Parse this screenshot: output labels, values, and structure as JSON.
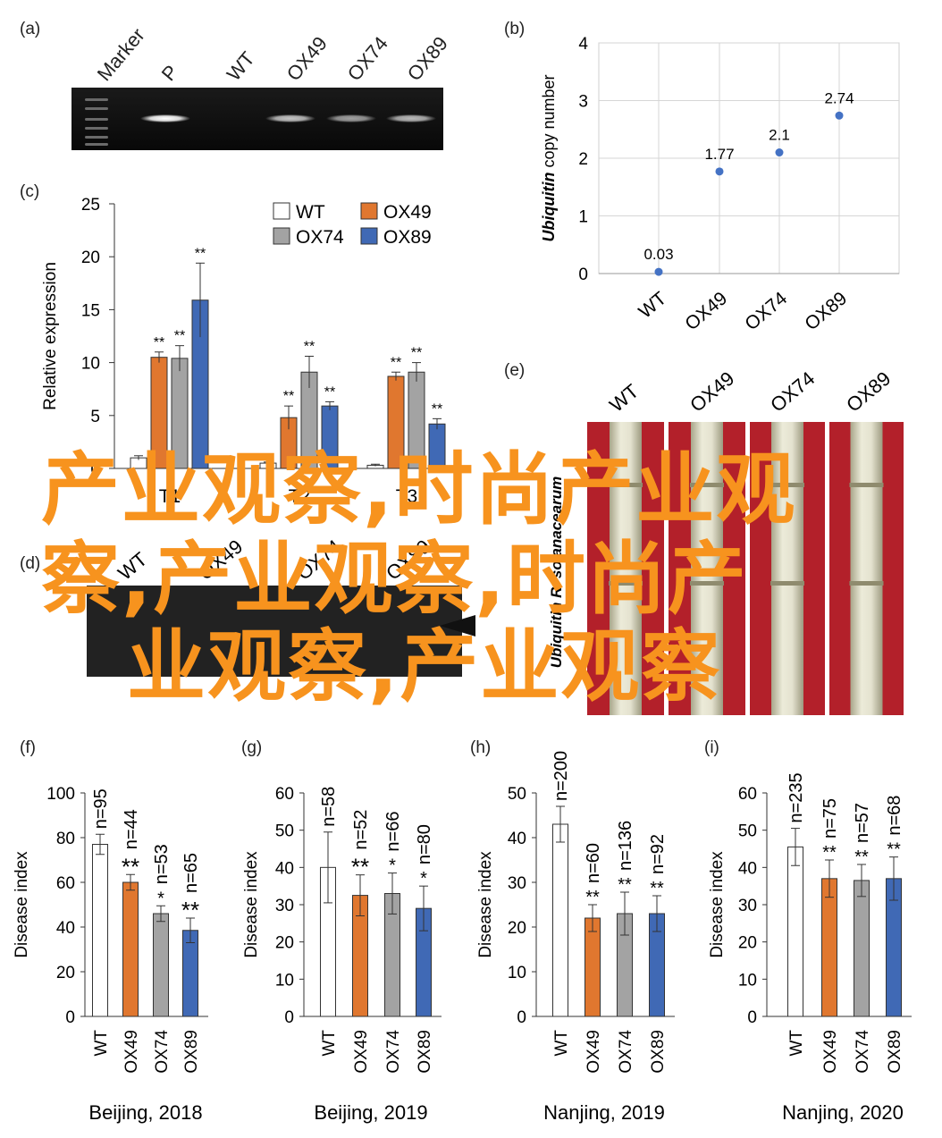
{
  "panel_labels": {
    "a": "(a)",
    "b": "(b)",
    "c": "(c)",
    "d": "(d)",
    "e": "(e)",
    "f": "(f)",
    "g": "(g)",
    "h": "(h)",
    "i": "(i)"
  },
  "colors": {
    "WT": "#ffffff",
    "OX49": "#e0772f",
    "OX74": "#a3a3a3",
    "OX89": "#4069b5",
    "watermark": "#f7931e",
    "dot": "#4472c4"
  },
  "gel_a": {
    "lanes": [
      "Marker",
      "P",
      "WT",
      "OX49",
      "OX74",
      "OX89"
    ]
  },
  "gel_d": {
    "lanes": [
      "WT",
      "OX49",
      "OX74",
      "OX89"
    ]
  },
  "photo_e": {
    "lanes": [
      "WT",
      "OX49",
      "OX74",
      "OX89"
    ],
    "side_label": "Ubiquitin R. solanacearum"
  },
  "watermark": {
    "lines": [
      "产业观察,时尚产业观",
      "察,产业观察,时尚产",
      "业观察,产业观察"
    ]
  },
  "chart_data": [
    {
      "id": "b",
      "type": "scatter",
      "categories": [
        "WT",
        "OX49",
        "OX74",
        "OX89"
      ],
      "values": [
        0.03,
        1.77,
        2.1,
        2.74
      ],
      "data_labels": [
        "0.03",
        "1.77",
        "2.1",
        "2.74"
      ],
      "ylabel_italic": "Ubiquitin",
      "ylabel_rest": " copy number",
      "ylim": [
        0,
        4
      ],
      "yticks": [
        "0",
        "1",
        "2",
        "3",
        "4"
      ],
      "grid": true
    },
    {
      "id": "c",
      "type": "bar",
      "categories": [
        "T1",
        "T2",
        "T3"
      ],
      "series": [
        {
          "name": "WT",
          "values": [
            1.0,
            0.5,
            0.3
          ],
          "errors": [
            0.2,
            0.1,
            0.1
          ],
          "sig": [
            "",
            "",
            ""
          ]
        },
        {
          "name": "OX49",
          "values": [
            10.5,
            4.8,
            8.7
          ],
          "errors": [
            0.5,
            1.1,
            0.4
          ],
          "sig": [
            "**",
            "**",
            "**"
          ]
        },
        {
          "name": "OX74",
          "values": [
            10.4,
            9.1,
            9.1
          ],
          "errors": [
            1.2,
            1.5,
            0.9
          ],
          "sig": [
            "**",
            "**",
            "**"
          ]
        },
        {
          "name": "OX89",
          "values": [
            15.9,
            5.9,
            4.2
          ],
          "errors": [
            3.5,
            0.4,
            0.5
          ],
          "sig": [
            "**",
            "**",
            "**"
          ]
        }
      ],
      "category_labels_visible": [
        "T1",
        "T2",
        "T3"
      ],
      "ylabel": "Relative expression",
      "ylim": [
        0,
        25
      ],
      "yticks": [
        "0",
        "5",
        "10",
        "15",
        "20",
        "25"
      ],
      "legend": "top-right"
    },
    {
      "id": "f",
      "type": "bar",
      "categories": [
        "WT",
        "OX49",
        "OX74",
        "OX89"
      ],
      "values": [
        77,
        60,
        46,
        38.5
      ],
      "errors": [
        4.5,
        3.5,
        3.5,
        5.5
      ],
      "n": [
        "n=95",
        "n=44",
        "n=53",
        "n=65"
      ],
      "sig": [
        "",
        "**",
        "*",
        "**"
      ],
      "ylabel": "Disease index",
      "ylim": [
        0,
        100
      ],
      "yticks": [
        "0",
        "20",
        "40",
        "60",
        "80",
        "100"
      ],
      "xlabel": "Beijing, 2018"
    },
    {
      "id": "g",
      "type": "bar",
      "categories": [
        "WT",
        "OX49",
        "OX74",
        "OX89"
      ],
      "values": [
        40,
        32.5,
        33,
        29
      ],
      "errors": [
        9.5,
        5.5,
        5.5,
        6
      ],
      "n": [
        "n=58",
        "n=52",
        "n=66",
        "n=80"
      ],
      "sig": [
        "",
        "**",
        "*",
        "*"
      ],
      "ylabel": "Disease index",
      "ylim": [
        0,
        60
      ],
      "yticks": [
        "0",
        "10",
        "20",
        "30",
        "40",
        "50",
        "60"
      ],
      "xlabel": "Beijing, 2019"
    },
    {
      "id": "h",
      "type": "bar",
      "categories": [
        "WT",
        "OX49",
        "OX74",
        "OX89"
      ],
      "values": [
        43,
        22,
        23,
        23
      ],
      "errors": [
        4,
        3,
        4.8,
        4
      ],
      "n": [
        "n=200",
        "n=60",
        "n=136",
        "n=92"
      ],
      "sig": [
        "",
        "**",
        "**",
        "**"
      ],
      "ylabel": "Disease index",
      "ylim": [
        0,
        50
      ],
      "yticks": [
        "0",
        "10",
        "20",
        "30",
        "40",
        "50"
      ],
      "xlabel": "Nanjing, 2019"
    },
    {
      "id": "i",
      "type": "bar",
      "categories": [
        "WT",
        "OX49",
        "OX74",
        "OX89"
      ],
      "values": [
        45.5,
        37,
        36.5,
        37
      ],
      "errors": [
        5,
        5,
        4.3,
        5.8
      ],
      "n": [
        "n=235",
        "n=75",
        "n=57",
        "n=68"
      ],
      "sig": [
        "",
        "**",
        "**",
        "**"
      ],
      "ylabel": "Disease index",
      "ylim": [
        0,
        60
      ],
      "yticks": [
        "0",
        "10",
        "20",
        "30",
        "40",
        "50",
        "60"
      ],
      "xlabel": "Nanjing, 2020"
    }
  ]
}
